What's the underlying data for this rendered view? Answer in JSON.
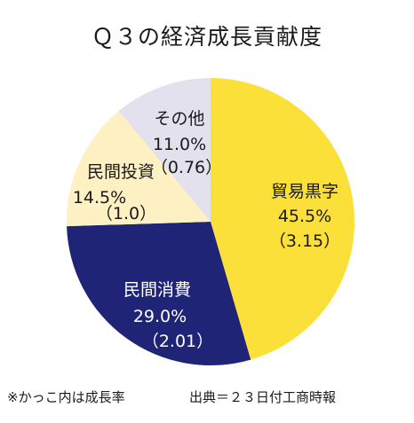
{
  "footer": {
    "note": "※かっこ内は成長率",
    "source": "出典＝２３日付工商時報"
  },
  "chart_data": {
    "type": "pie",
    "title": "Ｑ３の経済成長貢献度",
    "start": "12 o'clock",
    "direction": "clockwise",
    "slices": [
      {
        "name": "貿易黒字",
        "percent_label": "45.5%",
        "rate_label": "（3.15）",
        "value": 45.5,
        "rate": 3.15,
        "color": "#FBE03A"
      },
      {
        "name": "民間消費",
        "percent_label": "29.0%",
        "rate_label": "（2.01）",
        "value": 29.0,
        "rate": 2.01,
        "color": "#1F2476"
      },
      {
        "name": "民間投資",
        "percent_label": "14.5%",
        "rate_label": "（1.0）",
        "value": 14.5,
        "rate": 1.0,
        "color": "#FDF0C2"
      },
      {
        "name": "その他",
        "percent_label": "11.0%",
        "rate_label": "（0.76）",
        "value": 11.0,
        "rate": 0.76,
        "color": "#E4E1EE"
      }
    ]
  }
}
